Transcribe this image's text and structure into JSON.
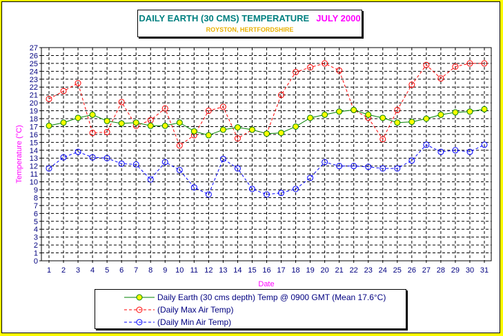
{
  "title": "DAILY EARTH (30 CMS) TEMPERATURE",
  "title_month": "JULY 2000",
  "subtitle": "ROYSTON, HERTFORDSHIRE",
  "colors": {
    "background": "#ffff00",
    "earth": "#008000",
    "earth_marker": "#ffff00",
    "max": "#ff0000",
    "min": "#0000ff",
    "axis_title": "#ff00ff",
    "legend_text": "#000080"
  },
  "chart_data": {
    "type": "line",
    "xlabel": "Date",
    "ylabel": "Temperature (°C)",
    "x": [
      1,
      2,
      3,
      4,
      5,
      6,
      7,
      8,
      9,
      10,
      11,
      12,
      13,
      14,
      15,
      16,
      17,
      18,
      19,
      20,
      21,
      22,
      23,
      24,
      25,
      26,
      27,
      28,
      29,
      30,
      31
    ],
    "ylim": [
      0,
      27
    ],
    "grid": true,
    "legend_position": "bottom",
    "series": [
      {
        "name": "Daily Earth (30 cms depth) Temp @ 0900 GMT (Mean 17.6°C)",
        "style": "solid-filled-markers",
        "values": [
          17.1,
          17.5,
          18.1,
          18.5,
          17.7,
          17.4,
          17.5,
          17.1,
          17.1,
          17.5,
          16.4,
          15.9,
          16.6,
          16.9,
          16.6,
          16.1,
          16.2,
          17.0,
          18.1,
          18.5,
          18.9,
          19.1,
          18.5,
          18.1,
          17.5,
          17.6,
          18.0,
          18.5,
          18.8,
          18.9,
          19.2
        ]
      },
      {
        "name": "(Daily Max Air Temp)",
        "style": "dashed-open-markers",
        "values": [
          20.5,
          21.5,
          22.5,
          16.2,
          16.3,
          20.1,
          17.1,
          17.8,
          19.3,
          14.6,
          15.9,
          19.0,
          19.5,
          15.5,
          16.6,
          16.1,
          21.0,
          23.9,
          24.5,
          25.0,
          24.1,
          19.1,
          18.1,
          15.4,
          19.1,
          22.3,
          24.8,
          23.1,
          24.6,
          25.0,
          25.0
        ]
      },
      {
        "name": "(Daily Min Air Temp)",
        "style": "dashed-open-markers",
        "values": [
          11.7,
          13.1,
          13.8,
          13.1,
          13.0,
          12.3,
          12.2,
          10.3,
          12.5,
          11.5,
          9.3,
          8.4,
          12.9,
          11.7,
          9.1,
          8.4,
          8.6,
          9.1,
          10.5,
          12.5,
          12.0,
          12.0,
          11.9,
          11.7,
          11.7,
          12.7,
          14.7,
          13.8,
          14.0,
          13.8,
          14.7
        ]
      }
    ]
  }
}
